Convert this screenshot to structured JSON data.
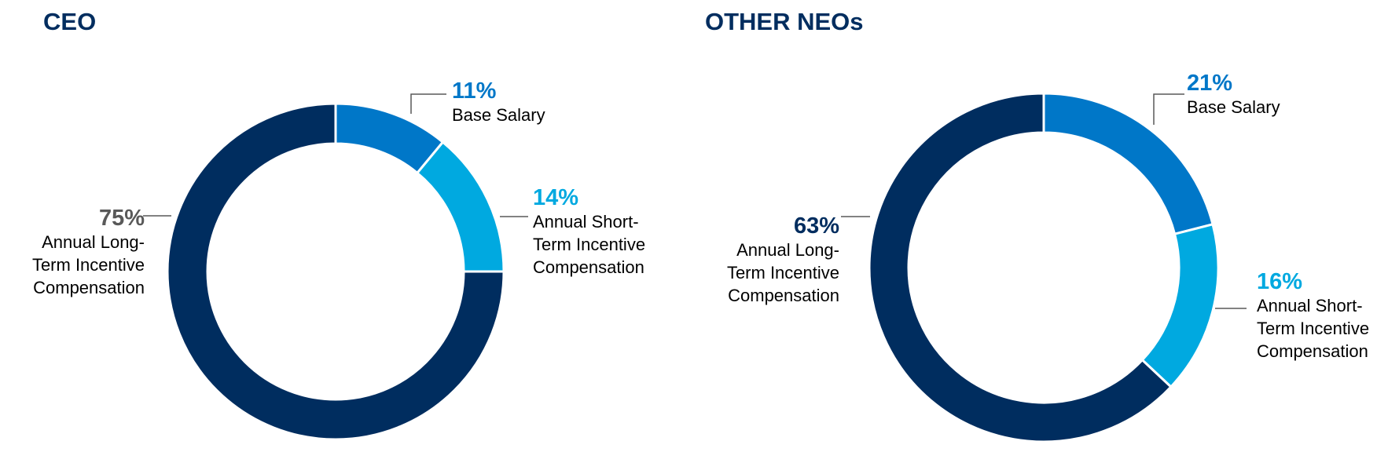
{
  "chart_data": [
    {
      "type": "pie",
      "title": "CEO",
      "categories": [
        "Base Salary",
        "Annual Short-Term Incentive Compensation",
        "Annual Long-Term Incentive Compensation"
      ],
      "values": [
        11,
        14,
        75
      ],
      "value_labels": [
        "11%",
        "14%",
        "75%"
      ],
      "colors": [
        "#0077c8",
        "#00a9e0",
        "#002d5f"
      ],
      "label_colors": [
        "#0077c8",
        "#00a9e0",
        "#595959"
      ]
    },
    {
      "type": "pie",
      "title": "OTHER NEOs",
      "categories": [
        "Base Salary",
        "Annual Short-Term Incentive Compensation",
        "Annual Long-Term Incentive Compensation"
      ],
      "values": [
        21,
        16,
        63
      ],
      "value_labels": [
        "21%",
        "16%",
        "63%"
      ],
      "colors": [
        "#0077c8",
        "#00a9e0",
        "#002d5f"
      ],
      "label_colors": [
        "#0077c8",
        "#00a9e0",
        "#002d5f"
      ]
    }
  ]
}
